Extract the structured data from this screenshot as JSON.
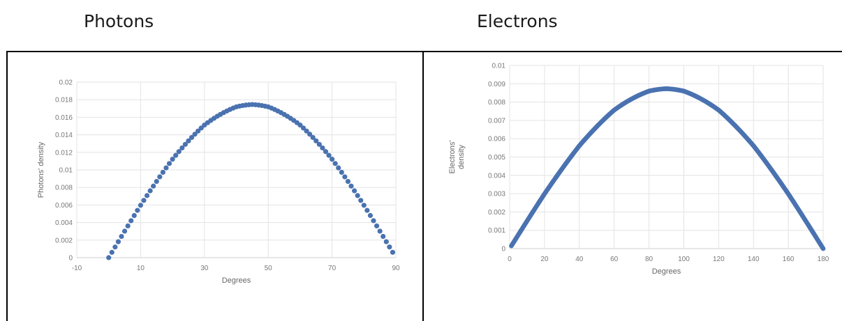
{
  "headings": {
    "left": "Photons",
    "right": "Electrons"
  },
  "chart_data": [
    {
      "type": "scatter",
      "xlabel": "Degrees",
      "ylabel": "Photons' density",
      "xlim": [
        -10,
        90
      ],
      "ylim": [
        0,
        0.02
      ],
      "x_ticks": [
        "-10",
        "10",
        "30",
        "50",
        "70",
        "90"
      ],
      "y_ticks": [
        "0",
        "0.002",
        "0.004",
        "0.006",
        "0.008",
        "0.01",
        "0.012",
        "0.014",
        "0.016",
        "0.018",
        "0.02"
      ],
      "grid": true,
      "marker_color": "#4a72b0",
      "series": [
        {
          "x": [
            0,
            10,
            20,
            30,
            40,
            45,
            50,
            60,
            70,
            80,
            89
          ],
          "y": [
            0,
            0.00597,
            0.01122,
            0.01512,
            0.01719,
            0.01745,
            0.01719,
            0.01512,
            0.01122,
            0.00597,
            0.00061
          ]
        }
      ]
    },
    {
      "type": "scatter",
      "xlabel": "Degrees",
      "ylabel": "Electrons' density",
      "xlim": [
        0,
        180
      ],
      "ylim": [
        0,
        0.01
      ],
      "x_ticks": [
        "0",
        "20",
        "40",
        "60",
        "80",
        "100",
        "120",
        "140",
        "160",
        "180"
      ],
      "y_ticks": [
        "0",
        "0.001",
        "0.002",
        "0.003",
        "0.004",
        "0.005",
        "0.006",
        "0.007",
        "0.008",
        "0.009",
        "0.01"
      ],
      "grid": true,
      "marker_color": "#4a72b0",
      "series": [
        {
          "x": [
            1,
            20,
            40,
            60,
            80,
            90,
            100,
            120,
            140,
            160,
            180
          ],
          "y": [
            0.00015,
            0.00299,
            0.00562,
            0.00757,
            0.0086,
            0.00873,
            0.0086,
            0.00757,
            0.00562,
            0.00299,
            0
          ]
        }
      ]
    }
  ]
}
